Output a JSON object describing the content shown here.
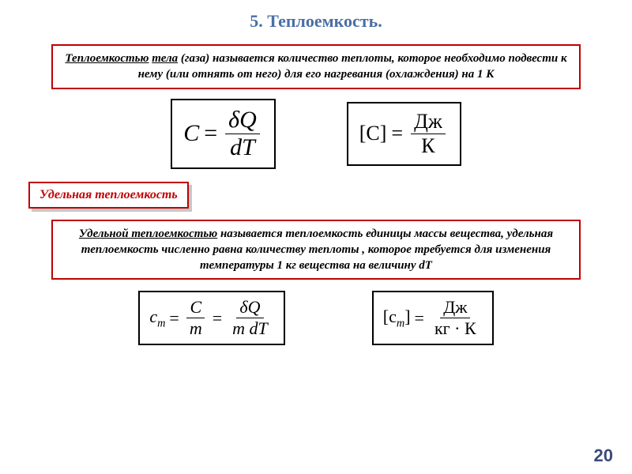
{
  "title": "5. Теплоемкость.",
  "title_color": "#4a6fa5",
  "def1": {
    "html": "<span class=\"underline\">Теплоемкостью</span> <span class=\"underline\">тела</span> (газа) называется количество теплоты, которое необходимо подвести к нему (или отнять от него) для его нагревания (охлаждения) на 1 К",
    "border_color": "#c00000"
  },
  "label": {
    "text": "Удельная теплоемкость",
    "text_color": "#c00000",
    "border_color": "#c00000"
  },
  "def2": {
    "html": "<span class=\"underline\">Удельной теплоемкостью</span> называется теплоемкость единицы массы вещества, удельная теплоемкость численно равна количеству теплоты , которое требуется для изменения температуры 1 кг вещества на величину dT",
    "border_color": "#c00000"
  },
  "formula1": {
    "lhs": "C",
    "num": "δQ",
    "den": "dT"
  },
  "unit1": {
    "lhs": "[C]",
    "num": "Дж",
    "den": "К"
  },
  "formula2": {
    "lhs_html": "c<span class=\"sub\">m</span>",
    "mid_num": "C",
    "mid_den": "m",
    "num": "δQ",
    "den": "m dT"
  },
  "unit2": {
    "lhs_html": "[c<span class=\"sub\">m</span>]",
    "num": "Дж",
    "den": "кг · К"
  },
  "page_number": "20",
  "page_num_color": "#3a4a7a"
}
